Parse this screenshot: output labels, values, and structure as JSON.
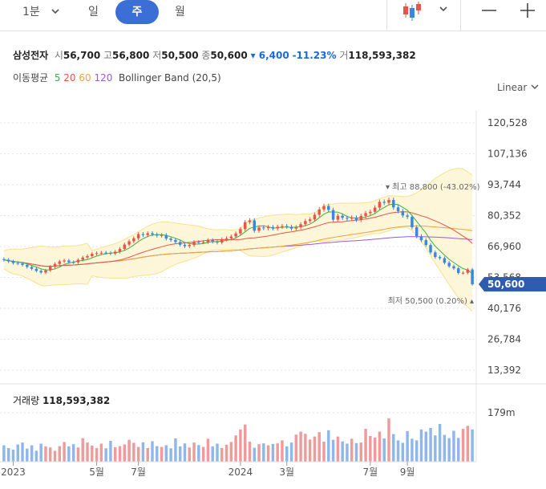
{
  "toolbar": {
    "interval_1min": "1분",
    "day": "일",
    "week": "주",
    "month": "월"
  },
  "header": {
    "name": "삼성전자",
    "open_label": "시",
    "open": "56,700",
    "high_label": "고",
    "high": "56,800",
    "low_label": "저",
    "low": "50,500",
    "close_label": "종",
    "close": "50,600",
    "change": "▾ 6,400",
    "change_pct": "-11.23%",
    "volume_label": "거",
    "volume": "118,593,382"
  },
  "indicators": {
    "label": "이동평균",
    "ma": [
      "5",
      "20",
      "60",
      "120"
    ],
    "ma_colors": [
      "#3cb043",
      "#e8534a",
      "#f0a23c",
      "#9b59d6"
    ],
    "bollinger": "Bollinger Band (20,5)"
  },
  "scale_label": "Linear",
  "volume_header": {
    "label": "거래량",
    "value": "118,593,382"
  },
  "colors": {
    "up": "#e8534a",
    "down": "#3a86e0",
    "band": "#f8e28e",
    "accent": "#3b6fd6"
  },
  "chart_data": {
    "type": "candlestick",
    "yaxis_ticks": [
      "120,528",
      "107,136",
      "93,744",
      "80,352",
      "66,960",
      "53,568",
      "40,176",
      "26,784",
      "13,392"
    ],
    "ytick_values": [
      120528,
      107136,
      93744,
      80352,
      66960,
      53568,
      40176,
      26784,
      13392
    ],
    "xaxis_ticks": [
      "2023",
      "5월",
      "7월",
      "2024",
      "3월",
      "7월",
      "9월"
    ],
    "xtick_weeks": [
      2,
      20,
      29,
      51,
      61,
      79,
      87
    ],
    "volume_tick": "179m",
    "volume_tick_value": 179000000,
    "high_annotation": {
      "label": "최고",
      "value": "88,800",
      "pct": "(-43.02%)"
    },
    "low_annotation": {
      "label": "최저",
      "value": "50,500",
      "pct": "(0.20%)"
    },
    "current_price_label": "50,600",
    "current_price": 50600,
    "closes": [
      61200,
      60500,
      59800,
      59600,
      59000,
      58100,
      57300,
      56400,
      55700,
      56600,
      58200,
      59400,
      60500,
      60900,
      60200,
      60100,
      61200,
      62200,
      62800,
      63800,
      64100,
      64300,
      64200,
      63900,
      64700,
      65900,
      67800,
      69200,
      70500,
      72300,
      71900,
      72700,
      72200,
      71700,
      71900,
      70400,
      69800,
      68900,
      67700,
      67100,
      67600,
      68900,
      68800,
      68900,
      69700,
      69100,
      68700,
      70100,
      70500,
      71300,
      72600,
      74500,
      77500,
      78300,
      73800,
      75200,
      74900,
      75400,
      74800,
      75500,
      75800,
      75500,
      74700,
      75300,
      76600,
      78000,
      78700,
      80700,
      83000,
      84500,
      82800,
      78600,
      80300,
      79400,
      79000,
      79500,
      78500,
      80200,
      81400,
      82000,
      83800,
      86300,
      85900,
      87100,
      83900,
      82300,
      80400,
      79800,
      75300,
      71400,
      69700,
      67600,
      64400,
      62400,
      61900,
      59900,
      58400,
      57500,
      55500,
      55600,
      57000,
      50600
    ],
    "volumes": [
      60,
      50,
      44,
      63,
      70,
      48,
      60,
      40,
      66,
      56,
      52,
      40,
      57,
      72,
      56,
      64,
      52,
      86,
      70,
      59,
      50,
      66,
      49,
      76,
      53,
      57,
      63,
      80,
      69,
      54,
      71,
      50,
      75,
      57,
      54,
      60,
      49,
      85,
      56,
      67,
      52,
      70,
      61,
      54,
      84,
      56,
      66,
      50,
      62,
      72,
      96,
      118,
      136,
      73,
      51,
      64,
      67,
      60,
      65,
      67,
      78,
      56,
      70,
      99,
      110,
      102,
      81,
      92,
      108,
      73,
      115,
      80,
      92,
      74,
      66,
      84,
      68,
      70,
      120,
      94,
      88,
      110,
      85,
      158,
      101,
      78,
      69,
      112,
      84,
      78,
      118,
      110,
      123,
      96,
      138,
      98,
      86,
      113,
      87,
      120,
      131,
      118
    ]
  }
}
